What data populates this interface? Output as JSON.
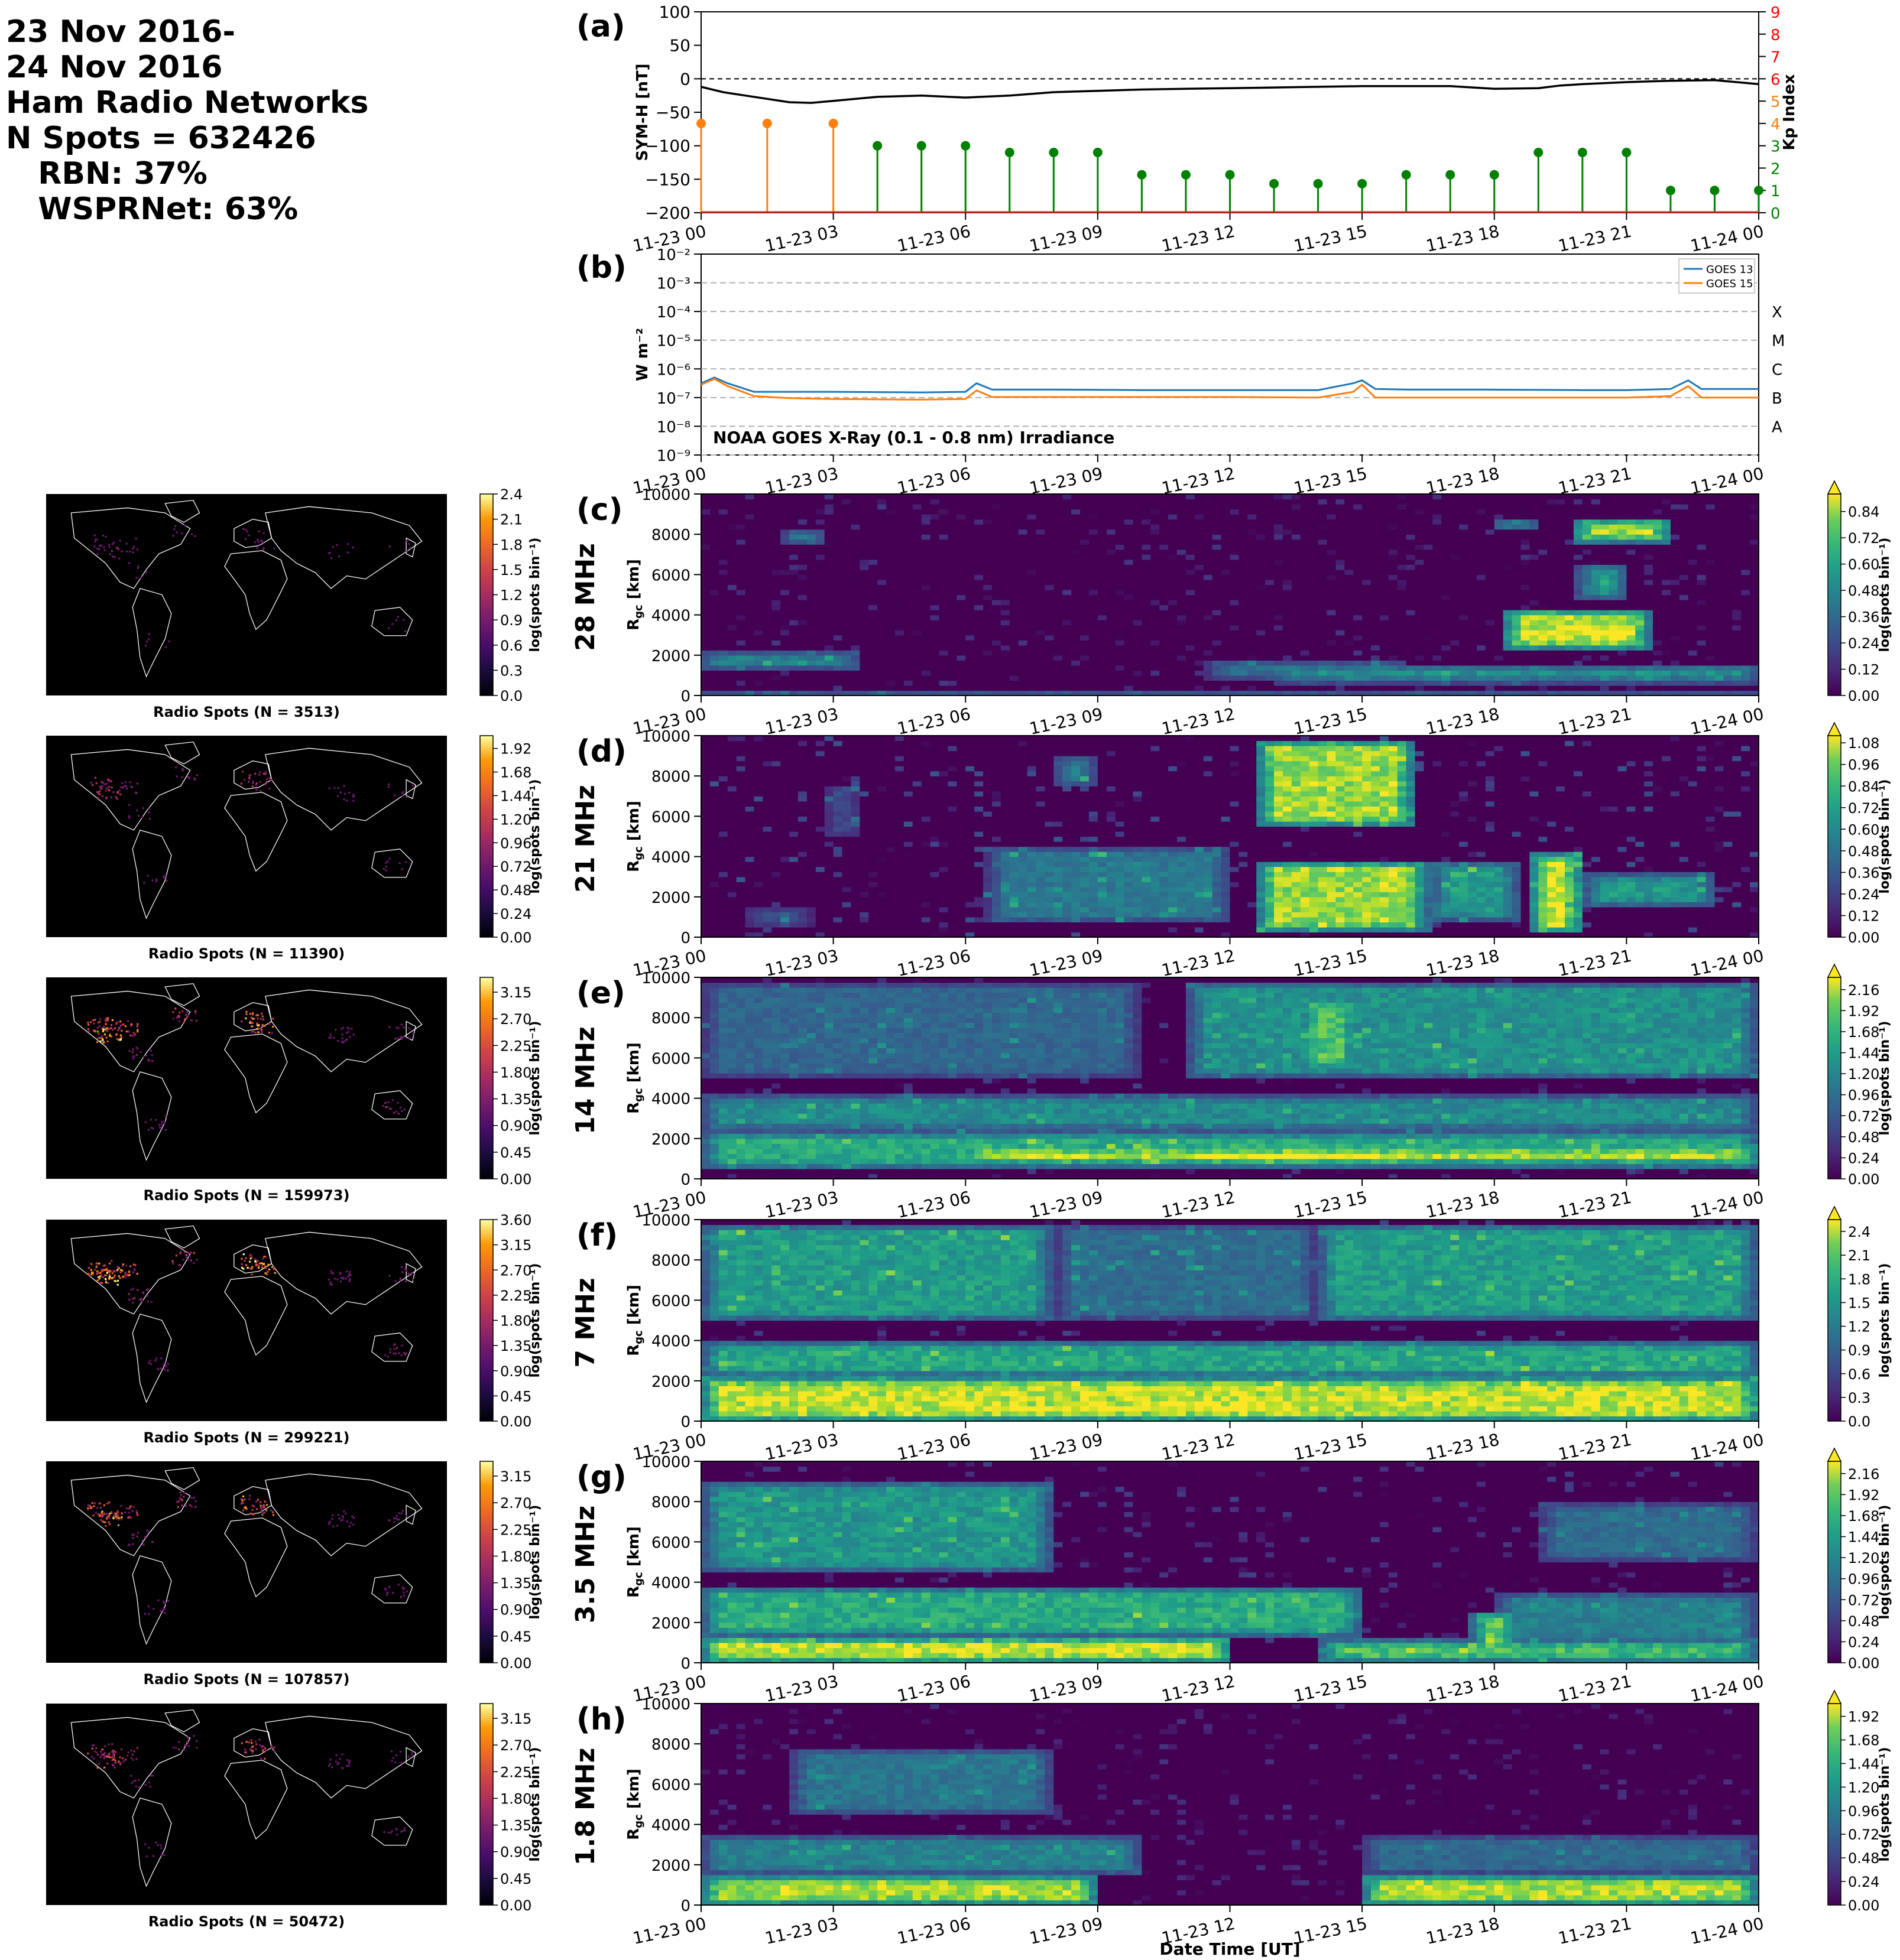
{
  "header": {
    "lines": [
      "23 Nov 2016-",
      "24 Nov 2016",
      "Ham Radio Networks",
      "N Spots = 632426",
      "   RBN: 37%",
      "   WSPRNet: 63%"
    ]
  },
  "colors": {
    "symh": "#000000",
    "kp_low": "#008000",
    "kp_mid": "#ff7f0e",
    "kp_axis": "#ff0000",
    "goes13": "#1f77b4",
    "goes15": "#ff7f0e",
    "map_land_outline": "#ffffff",
    "map_background": "#000000"
  },
  "time_ticks": [
    "11-23 00",
    "11-23 03",
    "11-23 06",
    "11-23 09",
    "11-23 12",
    "11-23 15",
    "11-23 18",
    "11-23 21",
    "11-24 00"
  ],
  "chart_data": [
    {
      "id": "a",
      "panel_label": "(a)",
      "type": "line",
      "ylabel": "SYM-H [nT]",
      "ylim": [
        -200,
        100
      ],
      "yticks": [
        "100",
        "50",
        "0",
        "−50",
        "−100",
        "−150",
        "−200"
      ],
      "y2label": "Kp Index",
      "y2lim": [
        0,
        9
      ],
      "y2ticks": [
        "0",
        "1",
        "2",
        "3",
        "4",
        "5",
        "6",
        "7",
        "8",
        "9"
      ],
      "symh": {
        "x_hours": [
          0,
          0.5,
          1,
          1.5,
          2,
          2.5,
          3,
          4,
          5,
          6,
          7,
          8,
          9,
          10,
          11,
          12,
          13,
          14,
          15,
          16,
          17,
          18,
          19,
          19.5,
          20,
          21,
          22,
          23,
          24
        ],
        "y": [
          -12,
          -20,
          -25,
          -30,
          -35,
          -36,
          -33,
          -27,
          -25,
          -28,
          -25,
          -20,
          -18,
          -16,
          -15,
          -14,
          -13,
          -12,
          -11,
          -11,
          -11,
          -15,
          -14,
          -10,
          -8,
          -5,
          -3,
          -2,
          -8
        ]
      },
      "kp": {
        "x_hours": [
          0,
          1.5,
          3,
          4,
          5,
          6,
          7,
          8,
          9,
          10,
          11,
          12,
          13,
          14,
          15,
          16,
          17,
          18,
          19,
          20,
          21,
          22,
          23,
          24
        ],
        "values": [
          4,
          4,
          4,
          3,
          3,
          3,
          2.7,
          2.7,
          2.7,
          1.7,
          1.7,
          1.7,
          1.3,
          1.3,
          1.3,
          1.7,
          1.7,
          1.7,
          2.7,
          2.7,
          2.7,
          1,
          1,
          1
        ]
      }
    },
    {
      "id": "b",
      "panel_label": "(b)",
      "type": "line",
      "ylabel": "W m⁻²",
      "log_scale": true,
      "ylim_exp": [
        -9,
        -2
      ],
      "yticks": [
        "10⁻²",
        "10⁻³",
        "10⁻⁴",
        "10⁻⁵",
        "10⁻⁶",
        "10⁻⁷",
        "10⁻⁸",
        "10⁻⁹"
      ],
      "classes": [
        "X",
        "M",
        "C",
        "B",
        "A"
      ],
      "annotation": "NOAA GOES X-Ray (0.1 - 0.8 nm) Irradiance",
      "series": [
        {
          "name": "GOES 13",
          "x_hours": [
            0,
            0.3,
            0.6,
            1.2,
            2,
            3,
            5,
            6,
            6.25,
            6.6,
            8,
            10,
            12,
            14,
            14.8,
            15,
            15.3,
            16,
            17.5,
            17.7,
            20,
            21,
            22,
            22.4,
            22.7,
            24
          ],
          "log10_y": [
            -6.5,
            -6.3,
            -6.5,
            -6.8,
            -6.8,
            -6.8,
            -6.82,
            -6.8,
            -6.5,
            -6.72,
            -6.72,
            -6.74,
            -6.74,
            -6.74,
            -6.5,
            -6.4,
            -6.7,
            -6.72,
            -6.72,
            -6.72,
            -6.74,
            -6.74,
            -6.7,
            -6.4,
            -6.7,
            -6.7
          ]
        },
        {
          "name": "GOES 15",
          "x_hours": [
            0,
            0.3,
            0.6,
            1.2,
            2,
            3,
            5,
            6,
            6.25,
            6.6,
            8,
            10,
            12,
            14,
            14.8,
            15,
            15.3,
            16,
            20,
            21,
            22,
            22.4,
            22.7,
            24
          ],
          "log10_y": [
            -6.55,
            -6.35,
            -6.6,
            -6.95,
            -7.02,
            -7.05,
            -7.07,
            -7.05,
            -6.75,
            -6.98,
            -6.98,
            -6.98,
            -6.98,
            -7.0,
            -6.8,
            -6.55,
            -7.0,
            -7.0,
            -7.0,
            -7.0,
            -6.95,
            -6.6,
            -7.0,
            -7.0
          ]
        }
      ]
    },
    {
      "id": "c",
      "panel_label": "(c)",
      "type": "heatmap",
      "freq": "28 MHz",
      "ylabel": "R",
      "ylabel_sub": "gc",
      "ylabel_unit": " [km]",
      "ylim": [
        0,
        10000
      ],
      "yticks": [
        "0",
        "2000",
        "4000",
        "6000",
        "8000",
        "10000"
      ],
      "cbar_label": "log(spots bin⁻¹)",
      "cbar_ticks": [
        "0.00",
        "0.12",
        "0.24",
        "0.36",
        "0.48",
        "0.60",
        "0.72",
        "0.84"
      ],
      "cbar_max": 0.92,
      "features": [
        [
          0.0,
          3.6,
          1300,
          2200,
          0.45
        ],
        [
          0.0,
          24,
          0,
          300,
          0.4
        ],
        [
          1.9,
          2.8,
          7600,
          8200,
          0.5
        ],
        [
          11.5,
          16,
          800,
          1800,
          0.35
        ],
        [
          13,
          24,
          600,
          1600,
          0.45
        ],
        [
          18.2,
          21.5,
          2300,
          4300,
          0.85
        ],
        [
          19.5,
          21.5,
          2500,
          3800,
          0.9
        ],
        [
          19.8,
          22,
          7600,
          8800,
          0.8
        ],
        [
          19.9,
          21,
          4800,
          6500,
          0.55
        ],
        [
          18,
          19,
          8200,
          8800,
          0.5
        ]
      ],
      "noise": 0.05
    },
    {
      "id": "d",
      "panel_label": "(d)",
      "type": "heatmap",
      "freq": "21 MHz",
      "ylabel": "R",
      "ylabel_sub": "gc",
      "ylabel_unit": " [km]",
      "ylim": [
        0,
        10000
      ],
      "yticks": [
        "0",
        "2000",
        "4000",
        "6000",
        "8000",
        "10000"
      ],
      "cbar_label": "log(spots bin⁻¹)",
      "cbar_ticks": [
        "0.00",
        "0.12",
        "0.24",
        "0.36",
        "0.48",
        "0.60",
        "0.72",
        "0.84",
        "0.96",
        "1.08"
      ],
      "cbar_max": 1.12,
      "features": [
        [
          6.5,
          12,
          700,
          4500,
          0.45
        ],
        [
          8,
          9,
          7500,
          9000,
          0.5
        ],
        [
          12.6,
          16.5,
          300,
          3800,
          0.95
        ],
        [
          12.6,
          16.2,
          5500,
          9800,
          0.95
        ],
        [
          16.5,
          18.6,
          800,
          3800,
          0.6
        ],
        [
          18.8,
          20,
          200,
          4200,
          1.05
        ],
        [
          20,
          23,
          1500,
          3200,
          0.6
        ],
        [
          1,
          2.5,
          500,
          1500,
          0.3
        ],
        [
          2.8,
          3.6,
          5000,
          7500,
          0.3
        ]
      ],
      "noise": 0.1
    },
    {
      "id": "e",
      "panel_label": "(e)",
      "type": "heatmap",
      "freq": "14 MHz",
      "ylabel": "R",
      "ylabel_sub": "gc",
      "ylabel_unit": " [km]",
      "ylim": [
        0,
        10000
      ],
      "yticks": [
        "0",
        "2000",
        "4000",
        "6000",
        "8000",
        "10000"
      ],
      "cbar_label": "log(spots bin⁻¹)",
      "cbar_ticks": [
        "0.00",
        "0.24",
        "0.48",
        "0.72",
        "0.96",
        "1.20",
        "1.44",
        "1.68",
        "1.92",
        "2.16"
      ],
      "cbar_max": 2.3,
      "features": [
        [
          0,
          24,
          500,
          2400,
          1.4
        ],
        [
          6,
          24,
          700,
          1700,
          2.0
        ],
        [
          11,
          16,
          700,
          1600,
          2.3
        ],
        [
          0,
          24,
          2400,
          4200,
          1.1
        ],
        [
          11,
          24,
          5000,
          9800,
          1.15
        ],
        [
          13.5,
          15,
          5500,
          9000,
          1.6
        ],
        [
          0,
          10,
          5000,
          9800,
          0.75
        ]
      ],
      "noise": 0.15
    },
    {
      "id": "f",
      "panel_label": "(f)",
      "type": "heatmap",
      "freq": "7 MHz",
      "ylabel": "R",
      "ylabel_sub": "gc",
      "ylabel_unit": " [km]",
      "ylim": [
        0,
        10000
      ],
      "yticks": [
        "0",
        "2000",
        "4000",
        "6000",
        "8000",
        "10000"
      ],
      "cbar_label": "log(spots bin⁻¹)",
      "cbar_ticks": [
        "0.0",
        "0.3",
        "0.6",
        "0.9",
        "1.2",
        "1.5",
        "1.8",
        "2.1",
        "2.4"
      ],
      "cbar_max": 2.55,
      "features": [
        [
          0,
          24,
          0,
          2200,
          2.3
        ],
        [
          0,
          24,
          2200,
          4000,
          1.5
        ],
        [
          0,
          8,
          5000,
          9800,
          1.4
        ],
        [
          14,
          24,
          5000,
          9800,
          1.4
        ],
        [
          8,
          14,
          5000,
          9800,
          0.9
        ],
        [
          6,
          14,
          200,
          1200,
          2.55
        ]
      ],
      "noise": 0.18
    },
    {
      "id": "g",
      "panel_label": "(g)",
      "type": "heatmap",
      "freq": "3.5 MHz",
      "ylabel": "R",
      "ylabel_sub": "gc",
      "ylabel_unit": " [km]",
      "ylim": [
        0,
        10000
      ],
      "yticks": [
        "0",
        "2000",
        "4000",
        "6000",
        "8000",
        "10000"
      ],
      "cbar_label": "log(spots bin⁻¹)",
      "cbar_ticks": [
        "0.00",
        "0.24",
        "0.48",
        "0.72",
        "0.96",
        "1.20",
        "1.44",
        "1.68",
        "1.92",
        "2.16"
      ],
      "cbar_max": 2.3,
      "features": [
        [
          0,
          12,
          0,
          1300,
          2.1
        ],
        [
          0,
          15,
          1300,
          3800,
          1.4
        ],
        [
          0,
          8,
          4500,
          9000,
          1.2
        ],
        [
          14,
          24,
          0,
          1200,
          1.6
        ],
        [
          17.5,
          18.5,
          600,
          2500,
          2.0
        ],
        [
          18,
          24,
          1000,
          3500,
          1.0
        ],
        [
          19,
          24,
          5000,
          8000,
          0.8
        ]
      ],
      "noise": 0.15
    },
    {
      "id": "h",
      "panel_label": "(h)",
      "type": "heatmap",
      "freq": "1.8 MHz",
      "ylabel": "R",
      "ylabel_sub": "gc",
      "ylabel_unit": " [km]",
      "ylim": [
        0,
        10000
      ],
      "yticks": [
        "0",
        "2000",
        "4000",
        "6000",
        "8000",
        "10000"
      ],
      "cbar_label": "log(spots bin⁻¹)",
      "cbar_ticks": [
        "0.00",
        "0.24",
        "0.48",
        "0.72",
        "0.96",
        "1.20",
        "1.44",
        "1.68",
        "1.92"
      ],
      "cbar_max": 2.05,
      "features": [
        [
          0,
          9,
          0,
          1500,
          1.8
        ],
        [
          0,
          10,
          1500,
          3500,
          0.9
        ],
        [
          2,
          8,
          4500,
          7800,
          0.8
        ],
        [
          15,
          24,
          0,
          1500,
          1.8
        ],
        [
          15,
          24,
          1500,
          3500,
          0.7
        ]
      ],
      "noise": 0.1
    }
  ],
  "maps": [
    {
      "caption": "Radio Spots (N = 3513)",
      "cbar_ticks": [
        "0.0",
        "0.3",
        "0.6",
        "0.9",
        "1.2",
        "1.5",
        "1.8",
        "2.1",
        "2.4"
      ],
      "cbar_max": 2.4,
      "intensity": 0.35
    },
    {
      "caption": "Radio Spots (N = 11390)",
      "cbar_ticks": [
        "0.00",
        "0.24",
        "0.48",
        "0.72",
        "0.96",
        "1.20",
        "1.44",
        "1.68",
        "1.92"
      ],
      "cbar_max": 2.05,
      "intensity": 0.55
    },
    {
      "caption": "Radio Spots (N = 159973)",
      "cbar_ticks": [
        "0.00",
        "0.45",
        "0.90",
        "1.35",
        "1.80",
        "2.25",
        "2.70",
        "3.15"
      ],
      "cbar_max": 3.4,
      "intensity": 0.95
    },
    {
      "caption": "Radio Spots (N = 299221)",
      "cbar_ticks": [
        "0.00",
        "0.45",
        "0.90",
        "1.35",
        "1.80",
        "2.25",
        "2.70",
        "3.15",
        "3.60"
      ],
      "cbar_max": 3.6,
      "intensity": 1.0
    },
    {
      "caption": "Radio Spots (N = 107857)",
      "cbar_ticks": [
        "0.00",
        "0.45",
        "0.90",
        "1.35",
        "1.80",
        "2.25",
        "2.70",
        "3.15"
      ],
      "cbar_max": 3.4,
      "intensity": 0.85
    },
    {
      "caption": "Radio Spots (N = 50472)",
      "cbar_ticks": [
        "0.00",
        "0.45",
        "0.90",
        "1.35",
        "1.80",
        "2.25",
        "2.70",
        "3.15"
      ],
      "cbar_max": 3.4,
      "intensity": 0.7
    }
  ],
  "map_cbar_label": "log(spots bin⁻¹)",
  "xlabel": "Date Time [UT]"
}
